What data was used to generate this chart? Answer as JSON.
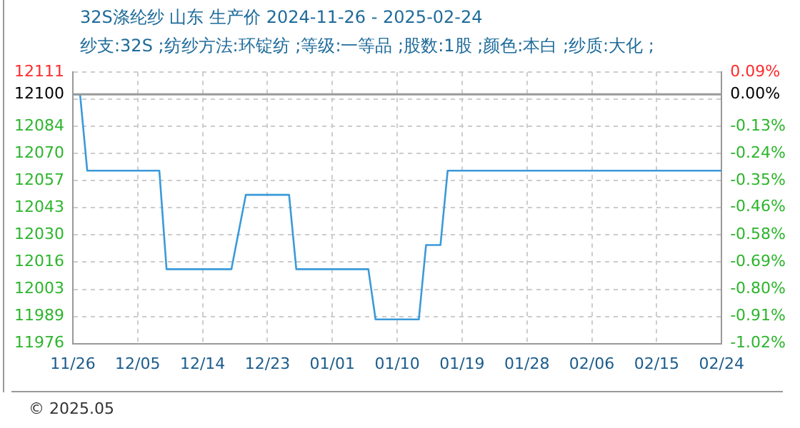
{
  "chart_data": {
    "type": "line",
    "title": "32S涤纶纱 山东 生产价 2024-11-26 - 2025-02-24",
    "subtitle": "纱支:32S ;纺纱方法:环锭纺 ;等级:一等品 ;股数:1股 ;颜色:本白 ;纱质:大化 ;",
    "x": [
      "2024-11-26",
      "2024-11-27",
      "2024-11-28",
      "2024-12-08",
      "2024-12-09",
      "2024-12-18",
      "2024-12-20",
      "2024-12-26",
      "2024-12-27",
      "2025-01-06",
      "2025-01-07",
      "2025-01-13",
      "2025-01-14",
      "2025-01-16",
      "2025-01-17",
      "2025-02-24"
    ],
    "series": [
      {
        "color": "#3a9ad9",
        "values": [
          12100,
          12100,
          12062,
          12062,
          12013,
          12013,
          12050,
          12050,
          12013,
          12013,
          11988,
          11988,
          12025,
          12025,
          12062,
          12062
        ]
      }
    ],
    "xlim": [
      "2024-11-26",
      "2025-02-24"
    ],
    "xticks": [
      {
        "value": "2024-11-26",
        "label": "11/26"
      },
      {
        "value": "2024-12-05",
        "label": "12/05"
      },
      {
        "value": "2024-12-14",
        "label": "12/14"
      },
      {
        "value": "2024-12-23",
        "label": "12/23"
      },
      {
        "value": "2025-01-01",
        "label": "01/01"
      },
      {
        "value": "2025-01-10",
        "label": "01/10"
      },
      {
        "value": "2025-01-19",
        "label": "01/19"
      },
      {
        "value": "2025-01-28",
        "label": "01/28"
      },
      {
        "value": "2025-02-06",
        "label": "02/06"
      },
      {
        "value": "2025-02-15",
        "label": "02/15"
      },
      {
        "value": "2025-02-24",
        "label": "02/24"
      }
    ],
    "ylim": [
      11976,
      12111
    ],
    "yticks": [
      12111,
      12100,
      {
        "value": 12097.5,
        "label": null
      },
      12084,
      {
        "value": 12070.5,
        "label": "12070"
      },
      12057,
      {
        "value": 12043.5,
        "label": "12043"
      },
      12030,
      {
        "value": 12016.5,
        "label": "12016"
      },
      12003,
      {
        "value": 11989.5,
        "label": "11989"
      },
      11976
    ],
    "y2lim": [
      -1.0248,
      0.0909
    ],
    "y2ticks": [
      {
        "value": 0.0909,
        "label": "0.09%"
      },
      {
        "value": 0,
        "label": "0.00%"
      },
      {
        "value": -0.1322,
        "label": "-0.13%"
      },
      {
        "value": -0.2438,
        "label": "-0.24%"
      },
      {
        "value": -0.354,
        "label": "-0.35%"
      },
      {
        "value": -0.464,
        "label": "-0.46%"
      },
      {
        "value": -0.5785,
        "label": "-0.58%"
      },
      {
        "value": -0.6901,
        "label": "-0.69%"
      },
      {
        "value": -0.8017,
        "label": "-0.80%"
      },
      {
        "value": -0.9132,
        "label": "-0.91%"
      },
      {
        "value": -1.0248,
        "label": "-1.02%"
      }
    ],
    "ref_lines": [
      {
        "axis": "y",
        "value": 12100,
        "color": "#999999"
      }
    ],
    "annotations": [
      "© 2025.05"
    ],
    "grid": true,
    "legend": false,
    "marker": "none",
    "line_style": "solid"
  }
}
